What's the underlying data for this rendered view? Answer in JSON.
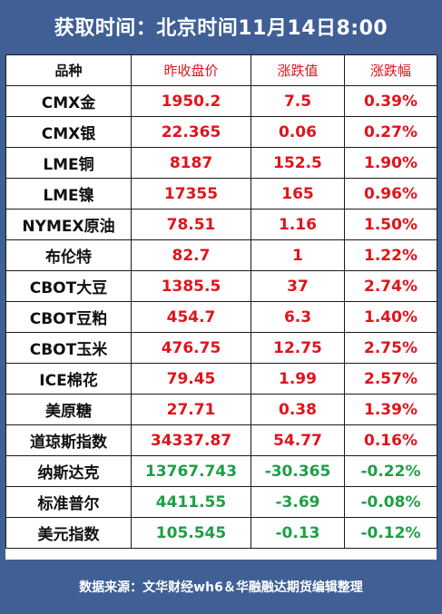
{
  "header": {
    "title": "获取时间：北京时间11月14日8:00"
  },
  "table": {
    "columns": [
      "品种",
      "昨收盘价",
      "涨跌值",
      "涨跌幅"
    ],
    "rows": [
      {
        "name": "CMX金",
        "close": "1950.2",
        "change": "7.5",
        "pct": "0.39%",
        "trend": "up"
      },
      {
        "name": "CMX银",
        "close": "22.365",
        "change": "0.06",
        "pct": "0.27%",
        "trend": "up"
      },
      {
        "name": "LME铜",
        "close": "8187",
        "change": "152.5",
        "pct": "1.90%",
        "trend": "up"
      },
      {
        "name": "LME镍",
        "close": "17355",
        "change": "165",
        "pct": "0.96%",
        "trend": "up"
      },
      {
        "name": "NYMEX原油",
        "close": "78.51",
        "change": "1.16",
        "pct": "1.50%",
        "trend": "up"
      },
      {
        "name": "布伦特",
        "close": "82.7",
        "change": "1",
        "pct": "1.22%",
        "trend": "up"
      },
      {
        "name": "CBOT大豆",
        "close": "1385.5",
        "change": "37",
        "pct": "2.74%",
        "trend": "up"
      },
      {
        "name": "CBOT豆粕",
        "close": "454.7",
        "change": "6.3",
        "pct": "1.40%",
        "trend": "up"
      },
      {
        "name": "CBOT玉米",
        "close": "476.75",
        "change": "12.75",
        "pct": "2.75%",
        "trend": "up"
      },
      {
        "name": "ICE棉花",
        "close": "79.45",
        "change": "1.99",
        "pct": "2.57%",
        "trend": "up"
      },
      {
        "name": "美原糖",
        "close": "27.71",
        "change": "0.38",
        "pct": "1.39%",
        "trend": "up"
      },
      {
        "name": "道琼斯指数",
        "close": "34337.87",
        "change": "54.77",
        "pct": "0.16%",
        "trend": "up"
      },
      {
        "name": "纳斯达克",
        "close": "13767.743",
        "change": "-30.365",
        "pct": "-0.22%",
        "trend": "down"
      },
      {
        "name": "标准普尔",
        "close": "4411.55",
        "change": "-3.69",
        "pct": "-0.08%",
        "trend": "down"
      },
      {
        "name": "美元指数",
        "close": "105.545",
        "change": "-0.13",
        "pct": "-0.12%",
        "trend": "down"
      }
    ]
  },
  "footer": {
    "source": "数据来源：文华财经wh6＆华融融达期货编辑整理"
  },
  "colors": {
    "frame": "#3f5f95",
    "up": "#e0141b",
    "down": "#1e9e46",
    "text": "#111111"
  }
}
